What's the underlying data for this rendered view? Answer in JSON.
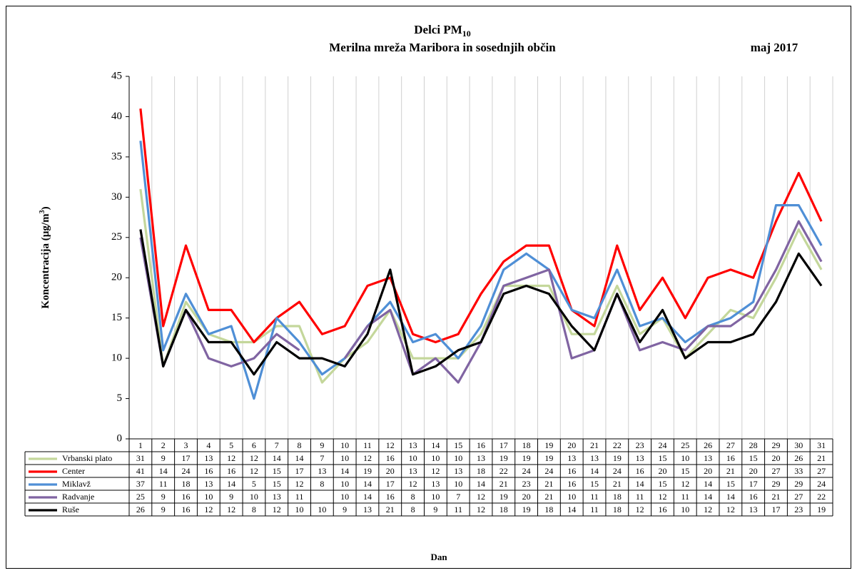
{
  "chart_data": {
    "type": "line",
    "title": {
      "text": "Delci PM",
      "subscript": "10"
    },
    "subtitle": "Merilna mreža Maribora in sosednjih občin",
    "date": "maj 2017",
    "y_label": {
      "text": "Koncentracija  (µg/m",
      "superscript": "3",
      "suffix": ")"
    },
    "x_label": "Dan",
    "categories": [
      "1",
      "2",
      "3",
      "4",
      "5",
      "6",
      "7",
      "8",
      "9",
      "10",
      "11",
      "12",
      "13",
      "14",
      "15",
      "16",
      "17",
      "18",
      "19",
      "20",
      "21",
      "22",
      "23",
      "24",
      "25",
      "26",
      "27",
      "28",
      "29",
      "30",
      "31"
    ],
    "ylim": [
      0,
      45
    ],
    "yticks": [
      0,
      5,
      10,
      15,
      20,
      25,
      30,
      35,
      40,
      45
    ],
    "grid": "vertical",
    "series": [
      {
        "name": "Vrbanski plato",
        "color": "#c4d79b",
        "values": [
          31,
          9,
          17,
          13,
          12,
          12,
          14,
          14,
          7,
          10,
          12,
          16,
          10,
          10,
          10,
          13,
          19,
          19,
          19,
          13,
          13,
          19,
          13,
          15,
          10,
          13,
          16,
          15,
          20,
          26,
          21
        ]
      },
      {
        "name": "Center",
        "color": "#ff0000",
        "values": [
          41,
          14,
          24,
          16,
          16,
          12,
          15,
          17,
          13,
          14,
          19,
          20,
          13,
          12,
          13,
          18,
          22,
          24,
          24,
          16,
          14,
          24,
          16,
          20,
          15,
          20,
          21,
          20,
          27,
          33,
          27
        ]
      },
      {
        "name": "Miklavž",
        "color": "#4f8fd6",
        "values": [
          37,
          11,
          18,
          13,
          14,
          5,
          15,
          12,
          8,
          10,
          14,
          17,
          12,
          13,
          10,
          14,
          21,
          23,
          21,
          16,
          15,
          21,
          14,
          15,
          12,
          14,
          15,
          17,
          29,
          29,
          24
        ]
      },
      {
        "name": "Radvanje",
        "color": "#8064a2",
        "values": [
          25,
          9,
          16,
          10,
          9,
          10,
          13,
          11,
          null,
          10,
          14,
          16,
          8,
          10,
          7,
          12,
          19,
          20,
          21,
          10,
          11,
          18,
          11,
          12,
          11,
          14,
          14,
          16,
          21,
          27,
          22
        ]
      },
      {
        "name": "Ruše",
        "color": "#000000",
        "values": [
          26,
          9,
          16,
          12,
          12,
          8,
          12,
          10,
          10,
          9,
          13,
          21,
          8,
          9,
          11,
          12,
          18,
          19,
          18,
          14,
          11,
          18,
          12,
          16,
          10,
          12,
          12,
          13,
          17,
          23,
          19
        ]
      }
    ]
  }
}
